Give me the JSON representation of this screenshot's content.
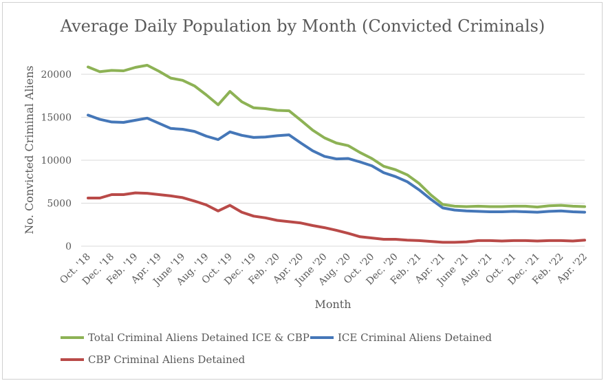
{
  "chart_data": {
    "type": "line",
    "title": "Average Daily Population by Month (Convicted Criminals)",
    "xlabel": "Month",
    "ylabel": "No. Convicted Criminal Aliens",
    "ylim": [
      0,
      22000
    ],
    "yticks": [
      0,
      5000,
      10000,
      15000,
      20000
    ],
    "grid": true,
    "legend_position": "bottom",
    "x": [
      "Oct. '18",
      "Nov. '18",
      "Dec. '18",
      "Jan. '19",
      "Feb. '19",
      "Mar. '19",
      "Apr. '19",
      "May '19",
      "June '19",
      "July '19",
      "Aug. '19",
      "Sep. '19",
      "Oct. '19",
      "Nov. '19",
      "Dec. '19",
      "Jan. '20",
      "Feb. '20",
      "Mar. '20",
      "Apr. '20",
      "May '20",
      "June '20",
      "July '20",
      "Aug. '20",
      "Sep. '20",
      "Oct. '20",
      "Nov. '20",
      "Dec. '20",
      "Jan. '21",
      "Feb. '21",
      "Mar. '21",
      "Apr. '21",
      "May '21",
      "June '21",
      "July '21",
      "Aug. '21",
      "Sep. '21",
      "Oct. '21",
      "Nov. '21",
      "Dec. '21",
      "Jan. '22",
      "Feb. '22",
      "Mar. '22",
      "Apr. '22"
    ],
    "x_tick_labels": [
      "Oct. '18",
      "Dec. '18",
      "Feb. '19",
      "Apr. '19",
      "June '19",
      "Aug. '19",
      "Oct. '19",
      "Dec. '19",
      "Feb. '20",
      "Apr. '20",
      "June '20",
      "Aug. '20",
      "Oct. '20",
      "Dec. '20",
      "Feb. '21",
      "Apr. '21",
      "June '21",
      "Aug. '21",
      "Oct. '21",
      "Dec. '21",
      "Feb. '22",
      "Apr. '22"
    ],
    "series": [
      {
        "name": "Total Criminal Aliens Detained ICE & CBP",
        "color": "#8db255",
        "values": [
          20850,
          20300,
          20450,
          20400,
          20800,
          21050,
          20350,
          19550,
          19300,
          18650,
          17600,
          16450,
          18000,
          16800,
          16100,
          16000,
          15800,
          15750,
          14650,
          13500,
          12600,
          12000,
          11700,
          10900,
          10200,
          9300,
          8900,
          8300,
          7300,
          5950,
          4850,
          4650,
          4600,
          4650,
          4600,
          4600,
          4650,
          4650,
          4550,
          4700,
          4750,
          4650,
          4600
        ]
      },
      {
        "name": "ICE Criminal Aliens Detained",
        "color": "#4577b8",
        "values": [
          15250,
          14750,
          14450,
          14400,
          14650,
          14900,
          14300,
          13700,
          13600,
          13350,
          12800,
          12400,
          13300,
          12900,
          12650,
          12700,
          12850,
          12950,
          12000,
          11100,
          10450,
          10150,
          10200,
          9800,
          9350,
          8550,
          8100,
          7500,
          6550,
          5450,
          4450,
          4200,
          4100,
          4050,
          4000,
          4000,
          4050,
          4000,
          3950,
          4050,
          4100,
          4000,
          3950
        ]
      },
      {
        "name": "CBP Criminal Aliens Detained",
        "color": "#b94a48",
        "values": [
          5600,
          5600,
          6000,
          6000,
          6200,
          6150,
          6000,
          5850,
          5650,
          5250,
          4800,
          4100,
          4750,
          3950,
          3500,
          3300,
          3000,
          2850,
          2700,
          2400,
          2150,
          1850,
          1500,
          1100,
          950,
          800,
          800,
          700,
          650,
          550,
          450,
          450,
          500,
          650,
          650,
          600,
          650,
          650,
          600,
          650,
          650,
          600,
          700
        ]
      }
    ]
  }
}
